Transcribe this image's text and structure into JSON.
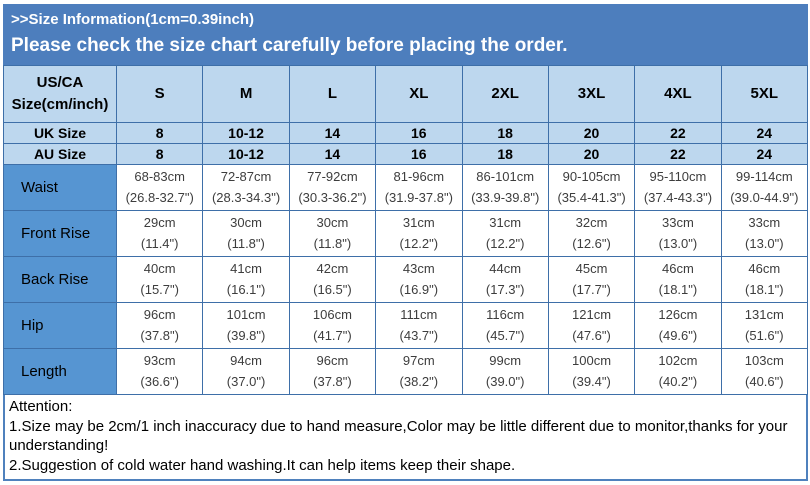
{
  "colors": {
    "banner_bg": "#4d7ebd",
    "header_cell_bg": "#bdd7ee",
    "label_cell_bg": "#5695d2",
    "grid_border": "#3e6fa8",
    "banner_text": "#ffffff",
    "data_text": "#3d3d3d"
  },
  "banner": {
    "line1": ">>Size Information(1cm=0.39inch)",
    "line2": "Please check the size chart carefully before placing the order."
  },
  "size_chart": {
    "header": [
      "US/CA Size(cm/inch)",
      "S",
      "M",
      "L",
      "XL",
      "2XL",
      "3XL",
      "4XL",
      "5XL"
    ],
    "size_rows": [
      {
        "label": "UK Size",
        "values": [
          "8",
          "10-12",
          "14",
          "16",
          "18",
          "20",
          "22",
          "24"
        ]
      },
      {
        "label": "AU Size",
        "values": [
          "8",
          "10-12",
          "14",
          "16",
          "18",
          "20",
          "22",
          "24"
        ]
      }
    ],
    "measurement_rows": [
      {
        "label": "Waist",
        "cm": [
          "68-83cm",
          "72-87cm",
          "77-92cm",
          "81-96cm",
          "86-101cm",
          "90-105cm",
          "95-110cm",
          "99-114cm"
        ],
        "inch": [
          "(26.8-32.7\")",
          "(28.3-34.3\")",
          "(30.3-36.2\")",
          "(31.9-37.8\")",
          "(33.9-39.8\")",
          "(35.4-41.3\")",
          "(37.4-43.3\")",
          "(39.0-44.9\")"
        ]
      },
      {
        "label": "Front Rise",
        "cm": [
          "29cm",
          "30cm",
          "30cm",
          "31cm",
          "31cm",
          "32cm",
          "33cm",
          "33cm"
        ],
        "inch": [
          "(11.4\")",
          "(11.8\")",
          "(11.8\")",
          "(12.2\")",
          "(12.2\")",
          "(12.6\")",
          "(13.0\")",
          "(13.0\")"
        ]
      },
      {
        "label": "Back Rise",
        "cm": [
          "40cm",
          "41cm",
          "42cm",
          "43cm",
          "44cm",
          "45cm",
          "46cm",
          "46cm"
        ],
        "inch": [
          "(15.7\")",
          "(16.1\")",
          "(16.5\")",
          "(16.9\")",
          "(17.3\")",
          "(17.7\")",
          "(18.1\")",
          "(18.1\")"
        ]
      },
      {
        "label": "Hip",
        "cm": [
          "96cm",
          "101cm",
          "106cm",
          "111cm",
          "116cm",
          "121cm",
          "126cm",
          "131cm"
        ],
        "inch": [
          "(37.8\")",
          "(39.8\")",
          "(41.7\")",
          "(43.7\")",
          "(45.7\")",
          "(47.6\")",
          "(49.6\")",
          "(51.6\")"
        ]
      },
      {
        "label": "Length",
        "cm": [
          "93cm",
          "94cm",
          "96cm",
          "97cm",
          "99cm",
          "100cm",
          "102cm",
          "103cm"
        ],
        "inch": [
          "(36.6\")",
          "(37.0\")",
          "(37.8\")",
          "(38.2\")",
          "(39.0\")",
          "(39.4\")",
          "(40.2\")",
          "(40.6\")"
        ]
      }
    ]
  },
  "attention": {
    "title": "Attention:",
    "notes": [
      "1.Size may be 2cm/1 inch inaccuracy due to hand measure,Color may be little different due to monitor,thanks for your understanding!",
      "2.Suggestion of cold water hand washing.It can help items keep their shape."
    ]
  }
}
